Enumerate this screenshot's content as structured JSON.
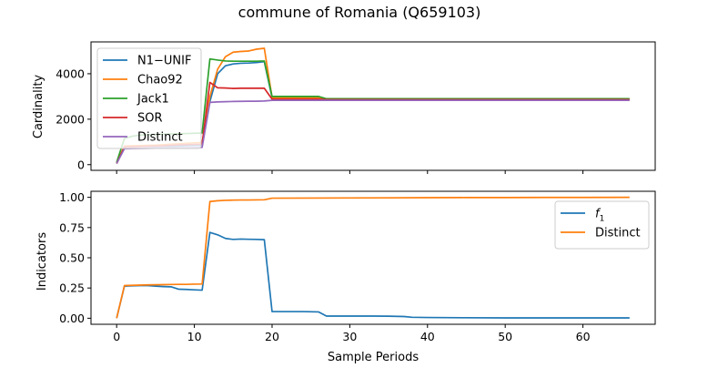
{
  "figure": {
    "title": "commune of Romania (Q659103)"
  },
  "colors": {
    "blue": "#1f77b4",
    "orange": "#ff7f0e",
    "green": "#2ca02c",
    "red": "#d62728",
    "purple": "#9467bd"
  },
  "chart_data": [
    {
      "type": "line",
      "title": "",
      "xlabel": "",
      "ylabel": "Cardinality",
      "xlim": [
        -3.3,
        69.3
      ],
      "ylim": [
        -250,
        5400
      ],
      "xticks": [
        0,
        10,
        20,
        30,
        40,
        50,
        60
      ],
      "xtick_labels_visible": false,
      "yticks": [
        0,
        2000,
        4000
      ],
      "ytick_labels": [
        "0",
        "2000",
        "4000"
      ],
      "legend_position": "upper-left",
      "series": [
        {
          "name": "N1−UNIF",
          "color": "#1f77b4",
          "x": [
            0,
            1,
            2,
            3,
            4,
            5,
            6,
            7,
            8,
            9,
            10,
            11,
            12,
            13,
            14,
            15,
            16,
            17,
            18,
            19,
            20,
            22,
            24,
            26,
            27,
            30,
            35,
            40,
            45,
            50,
            55,
            60,
            66
          ],
          "y": [
            50,
            780,
            790,
            800,
            800,
            800,
            810,
            810,
            820,
            830,
            840,
            850,
            2780,
            4000,
            4350,
            4430,
            4460,
            4470,
            4490,
            4530,
            2950,
            2950,
            2950,
            2950,
            2870,
            2870,
            2870,
            2870,
            2870,
            2870,
            2870,
            2870,
            2870
          ]
        },
        {
          "name": "Chao92",
          "color": "#ff7f0e",
          "x": [
            0,
            1,
            2,
            3,
            4,
            5,
            6,
            7,
            8,
            9,
            10,
            11,
            12,
            13,
            14,
            15,
            16,
            17,
            18,
            19,
            20,
            22,
            24,
            26,
            27,
            30,
            35,
            40,
            45,
            50,
            55,
            60,
            66
          ],
          "y": [
            50,
            820,
            830,
            840,
            850,
            860,
            880,
            900,
            920,
            940,
            960,
            980,
            3000,
            4200,
            4750,
            4950,
            4980,
            5000,
            5080,
            5120,
            2950,
            2950,
            2950,
            2950,
            2880,
            2880,
            2880,
            2880,
            2880,
            2880,
            2880,
            2880,
            2880
          ]
        },
        {
          "name": "Jack1",
          "color": "#2ca02c",
          "x": [
            0,
            1,
            2,
            3,
            4,
            5,
            6,
            7,
            8,
            9,
            10,
            11,
            12,
            13,
            14,
            15,
            16,
            17,
            18,
            19,
            20,
            22,
            24,
            26,
            27,
            30,
            35,
            40,
            45,
            50,
            55,
            60,
            66
          ],
          "y": [
            100,
            1150,
            1250,
            1300,
            1320,
            1330,
            1340,
            1350,
            1360,
            1370,
            1380,
            1390,
            4650,
            4600,
            4560,
            4550,
            4550,
            4550,
            4550,
            4560,
            3000,
            3000,
            3000,
            3000,
            2900,
            2900,
            2900,
            2900,
            2900,
            2900,
            2900,
            2900,
            2900
          ]
        },
        {
          "name": "SOR",
          "color": "#d62728",
          "x": [
            0,
            1,
            2,
            3,
            4,
            5,
            6,
            7,
            8,
            9,
            10,
            11,
            12,
            13,
            14,
            15,
            16,
            17,
            18,
            19,
            20,
            22,
            24,
            26,
            27,
            30,
            35,
            40,
            45,
            50,
            55,
            60,
            66
          ],
          "y": [
            50,
            780,
            790,
            800,
            810,
            820,
            830,
            850,
            870,
            880,
            890,
            900,
            3620,
            3380,
            3370,
            3350,
            3360,
            3360,
            3360,
            3360,
            2880,
            2880,
            2880,
            2880,
            2860,
            2860,
            2860,
            2860,
            2860,
            2860,
            2860,
            2860,
            2860
          ]
        },
        {
          "name": "Distinct",
          "color": "#9467bd",
          "x": [
            0,
            1,
            2,
            3,
            4,
            5,
            6,
            7,
            8,
            9,
            10,
            11,
            12,
            13,
            14,
            15,
            16,
            17,
            18,
            19,
            20,
            22,
            24,
            26,
            27,
            30,
            35,
            40,
            45,
            50,
            55,
            60,
            66
          ],
          "y": [
            50,
            700,
            710,
            715,
            720,
            725,
            730,
            735,
            740,
            745,
            750,
            760,
            2740,
            2760,
            2770,
            2780,
            2785,
            2790,
            2790,
            2800,
            2830,
            2830,
            2830,
            2830,
            2830,
            2830,
            2830,
            2830,
            2830,
            2830,
            2830,
            2830,
            2830
          ]
        }
      ]
    },
    {
      "type": "line",
      "title": "",
      "xlabel": "Sample Periods",
      "ylabel": "Indicators",
      "xlim": [
        -3.3,
        69.3
      ],
      "ylim": [
        -0.05,
        1.05
      ],
      "xticks": [
        0,
        10,
        20,
        30,
        40,
        50,
        60
      ],
      "xtick_labels": [
        "0",
        "10",
        "20",
        "30",
        "40",
        "50",
        "60"
      ],
      "yticks": [
        0,
        0.25,
        0.5,
        0.75,
        1.0
      ],
      "ytick_labels": [
        "0.00",
        "0.25",
        "0.50",
        "0.75",
        "1.00"
      ],
      "legend_position": "upper-right",
      "series": [
        {
          "name": "f1",
          "name_main": "f",
          "name_sub": "1",
          "color": "#1f77b4",
          "x": [
            0,
            1,
            2,
            3,
            4,
            5,
            6,
            7,
            8,
            9,
            10,
            11,
            12,
            13,
            14,
            15,
            16,
            17,
            18,
            19,
            20,
            22,
            24,
            26,
            27,
            30,
            33,
            35,
            37,
            38,
            40,
            45,
            50,
            55,
            60,
            66
          ],
          "y": [
            0.0,
            0.265,
            0.268,
            0.27,
            0.27,
            0.265,
            0.262,
            0.26,
            0.24,
            0.238,
            0.235,
            0.232,
            0.71,
            0.69,
            0.66,
            0.652,
            0.655,
            0.653,
            0.652,
            0.65,
            0.055,
            0.055,
            0.055,
            0.052,
            0.018,
            0.018,
            0.018,
            0.017,
            0.014,
            0.008,
            0.006,
            0.004,
            0.003,
            0.003,
            0.003,
            0.003
          ]
        },
        {
          "name": "Distinct",
          "color": "#ff7f0e",
          "x": [
            0,
            1,
            2,
            3,
            4,
            5,
            6,
            7,
            8,
            9,
            10,
            11,
            12,
            13,
            14,
            15,
            16,
            17,
            18,
            19,
            20,
            25,
            30,
            35,
            40,
            45,
            50,
            55,
            60,
            66
          ],
          "y": [
            0.0,
            0.27,
            0.272,
            0.274,
            0.276,
            0.277,
            0.278,
            0.279,
            0.28,
            0.28,
            0.282,
            0.283,
            0.965,
            0.972,
            0.975,
            0.977,
            0.978,
            0.978,
            0.979,
            0.98,
            0.993,
            0.994,
            0.995,
            0.996,
            0.997,
            0.998,
            0.998,
            0.999,
            0.999,
            1.0
          ]
        }
      ]
    }
  ]
}
